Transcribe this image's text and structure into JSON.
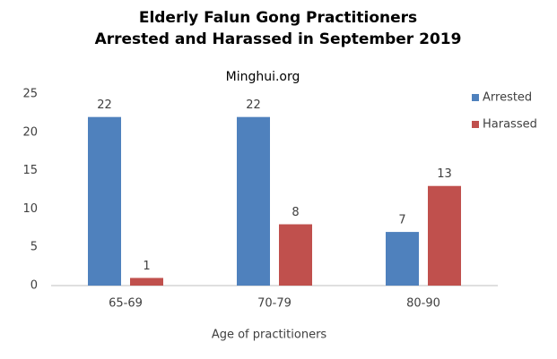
{
  "chart_data": {
    "type": "bar",
    "title": [
      "Elderly Falun Gong Practitioners",
      "Arrested and Harassed in September 2019"
    ],
    "subtitle": "Minghui.org",
    "xlabel": "Age of practitioners",
    "categories": [
      "65-69",
      "70-79",
      "80-90"
    ],
    "series": [
      {
        "name": "Arrested",
        "color": "#4f81bd",
        "values": [
          22,
          22,
          7
        ]
      },
      {
        "name": "Harassed",
        "color": "#c0504d",
        "values": [
          1,
          8,
          13
        ]
      }
    ],
    "ylim": [
      0,
      25
    ],
    "yticks": [
      0,
      5,
      10,
      15,
      20,
      25
    ],
    "grid": false,
    "legend": "right"
  }
}
